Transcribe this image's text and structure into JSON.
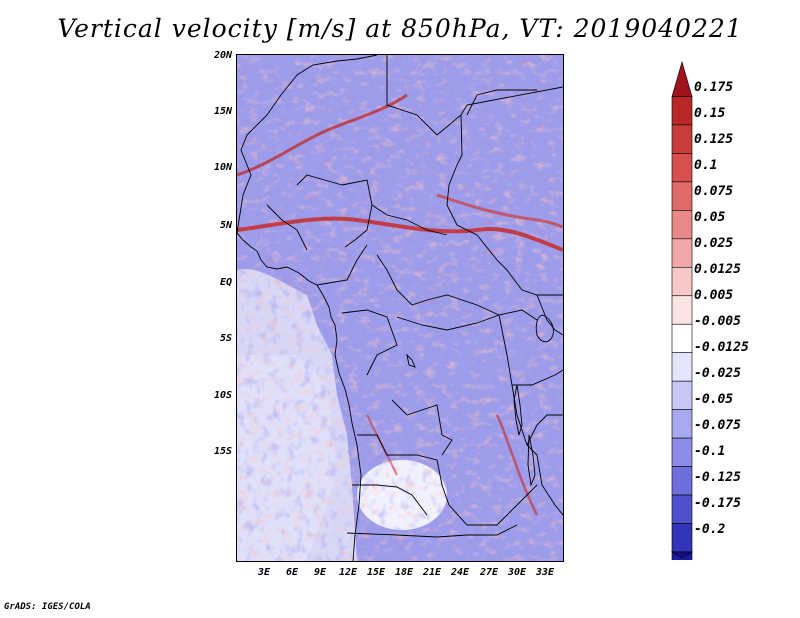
{
  "title": "Vertical velocity [m/s] at 850hPa, VT: 2019040221",
  "credit": "GrADS: IGES/COLA",
  "map": {
    "variable": "Vertical velocity",
    "units": "m/s",
    "level": "850hPa",
    "valid_time": "2019040221",
    "lat_labels": [
      "20N",
      "15N",
      "10N",
      "5N",
      "EQ",
      "5S",
      "10S",
      "15S"
    ],
    "lon_labels": [
      "3E",
      "6E",
      "9E",
      "12E",
      "15E",
      "18E",
      "21E",
      "24E",
      "27E",
      "30E",
      "33E"
    ]
  },
  "colorbar": {
    "labels": [
      "0.175",
      "0.15",
      "0.125",
      "0.1",
      "0.075",
      "0.05",
      "0.025",
      "0.0125",
      "0.005",
      "-0.005",
      "-0.0125",
      "-0.025",
      "-0.05",
      "-0.075",
      "-0.1",
      "-0.125",
      "-0.175",
      "-0.2"
    ],
    "colors": [
      "#a0141e",
      "#b82828",
      "#c83c3c",
      "#d65050",
      "#e06a6a",
      "#e88888",
      "#f0a8a8",
      "#f6c8c8",
      "#fbe4e4",
      "#ffffff",
      "#e4e4fb",
      "#c8c8f4",
      "#a8a8ee",
      "#8c8ce6",
      "#6e6edc",
      "#5050cc",
      "#3434b8",
      "#1a1aa0",
      "#140a8c"
    ]
  }
}
